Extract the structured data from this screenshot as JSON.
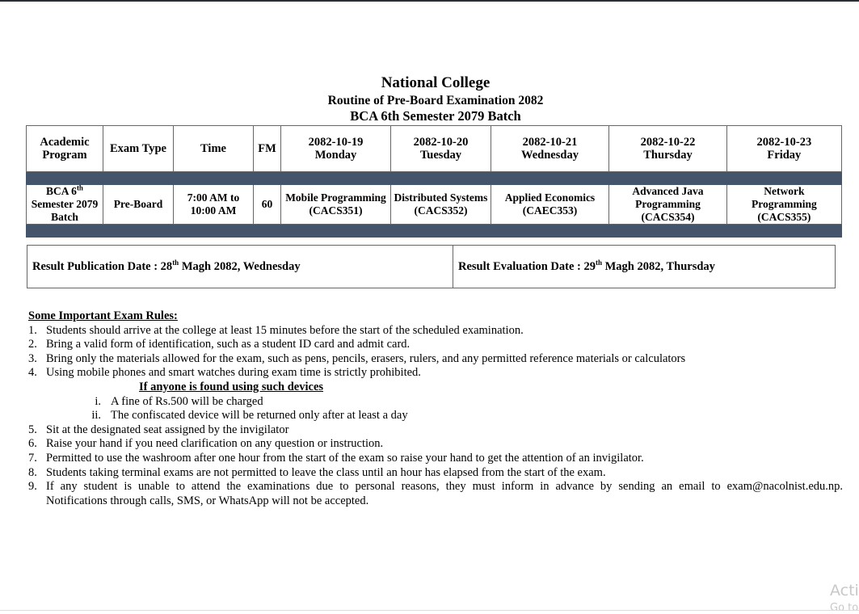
{
  "header": {
    "college": "National College",
    "routine": "Routine of Pre-Board Examination 2082",
    "batch": "BCA 6th Semester 2079 Batch"
  },
  "table": {
    "columns": [
      "Academic Program",
      "Exam Type",
      "Time",
      "FM"
    ],
    "dates": [
      {
        "date": "2082-10-19",
        "day": "Monday"
      },
      {
        "date": "2082-10-20",
        "day": "Tuesday"
      },
      {
        "date": "2082-10-21",
        "day": "Wednesday"
      },
      {
        "date": "2082-10-22",
        "day": "Thursday"
      },
      {
        "date": "2082-10-23",
        "day": "Friday"
      }
    ],
    "row": {
      "program_a": "BCA 6",
      "program_sup": "th",
      "program_b": "Semester 2079 Batch",
      "exam_type": "Pre-Board",
      "time": "7:00 AM to 10:00 AM",
      "fm": "60",
      "subjects": [
        {
          "name": "Mobile Programming",
          "code": "(CACS351)"
        },
        {
          "name": "Distributed Systems",
          "code": "(CACS352)"
        },
        {
          "name": "Applied Economics",
          "code": "(CAEC353)"
        },
        {
          "name": "Advanced Java Programming",
          "code": "(CACS354)"
        },
        {
          "name": "Network Programming",
          "code": "(CACS355)"
        }
      ]
    },
    "band_color": "#44546a"
  },
  "result": {
    "pub_label": "Result Publication Date : 28",
    "pub_sup": "th",
    "pub_rest": " Magh 2082, Wednesday",
    "eval_label": "Result Evaluation Date : 29",
    "eval_sup": "th",
    "eval_rest": " Magh 2082, Thursday"
  },
  "rules": {
    "heading": "Some Important Exam Rules:",
    "items": [
      "Students should arrive at the college at least 15 minutes before the start of the scheduled examination.",
      "Bring a valid form of identification, such as a student ID card and admit card.",
      "Bring only the materials allowed for the exam, such as pens, pencils, erasers, rulers, and any permitted reference materials or calculators",
      "Using mobile phones and smart watches during exam time is strictly prohibited.",
      "Sit at the designated seat assigned by the invigilator",
      "Raise your hand if you need clarification on any question or instruction.",
      "Permitted to use the washroom after one hour from the start of the exam so raise your hand to get the attention of an invigilator.",
      "Students taking terminal exams are not permitted to leave the class until an hour has elapsed from the start of the exam.",
      "If any student is unable to attend the examinations due to personal reasons, they must inform in advance by sending an email to exam@nacolnist.edu.np."
    ],
    "item9_cont": "Notifications through calls, SMS, or WhatsApp will not be accepted.",
    "sub_heading": "If anyone is found using such devices",
    "sub_items": [
      {
        "n": "i.",
        "text": "A fine of Rs.500 will be charged"
      },
      {
        "n": "ii.",
        "text": "The confiscated device will be returned only after at least a day"
      }
    ]
  },
  "watermark": {
    "line1": "Activ",
    "line2": "Go to"
  }
}
